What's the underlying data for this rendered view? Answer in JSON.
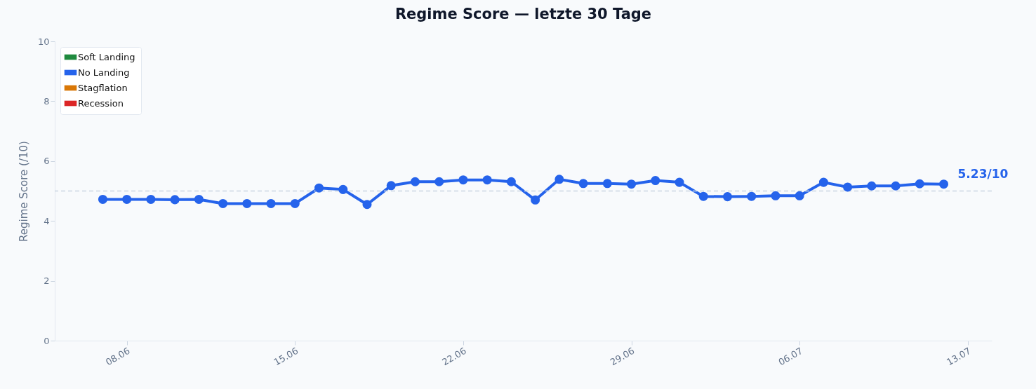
{
  "chart_data": {
    "type": "line",
    "title": "Regime Score — letzte 30 Tage",
    "ylabel": "Regime Score (/10)",
    "x": [
      "--06-07",
      "--06-08",
      "--06-09",
      "--06-10",
      "--06-11",
      "--06-12",
      "--06-13",
      "--06-14",
      "--06-15",
      "--06-16",
      "--06-17",
      "--06-18",
      "--06-19",
      "--06-20",
      "--06-21",
      "--06-22",
      "--06-23",
      "--06-24",
      "--06-25",
      "--06-26",
      "--06-27",
      "--06-28",
      "--06-29",
      "--06-30",
      "--07-01",
      "--07-02",
      "--07-03",
      "--07-04",
      "--07-05",
      "--07-06",
      "--07-07",
      "--07-08",
      "--07-09",
      "--07-10",
      "--07-11",
      "--07-12"
    ],
    "series": [
      {
        "name": "Soft Landing",
        "color": "#1f8a3e",
        "values": [
          null,
          null,
          null,
          null,
          null,
          null,
          null,
          null,
          null,
          null,
          null,
          null,
          null,
          null,
          null,
          null,
          null,
          null,
          null,
          null,
          null,
          null,
          null,
          null,
          null,
          null,
          null,
          null,
          null,
          null,
          null,
          null,
          null,
          null,
          null,
          null
        ]
      },
      {
        "name": "No Landing",
        "color": "#2563eb",
        "values": [
          4.72,
          4.72,
          4.72,
          4.71,
          4.72,
          4.58,
          4.58,
          4.58,
          4.58,
          5.1,
          5.05,
          4.55,
          5.18,
          5.31,
          5.31,
          5.37,
          5.37,
          5.31,
          4.7,
          5.39,
          5.25,
          5.25,
          5.23,
          5.35,
          5.29,
          4.82,
          4.81,
          4.82,
          4.84,
          4.84,
          5.29,
          5.13,
          5.17,
          5.17,
          5.24,
          5.23
        ]
      },
      {
        "name": "Stagflation",
        "color": "#d97706",
        "values": [
          null,
          null,
          null,
          null,
          null,
          null,
          null,
          null,
          null,
          null,
          null,
          null,
          null,
          null,
          null,
          null,
          null,
          null,
          null,
          null,
          null,
          null,
          null,
          null,
          null,
          null,
          null,
          null,
          null,
          null,
          null,
          null,
          null,
          null,
          null,
          null
        ]
      },
      {
        "name": "Recession",
        "color": "#dc2626",
        "values": [
          null,
          null,
          null,
          null,
          null,
          null,
          null,
          null,
          null,
          null,
          null,
          null,
          null,
          null,
          null,
          null,
          null,
          null,
          null,
          null,
          null,
          null,
          null,
          null,
          null,
          null,
          null,
          null,
          null,
          null,
          null,
          null,
          null,
          null,
          null,
          null
        ]
      }
    ],
    "xlim": [
      "--06-05",
      "--07-14"
    ],
    "xticks": [
      {
        "value": "--06-08",
        "label": "08.06"
      },
      {
        "value": "--06-15",
        "label": "15.06"
      },
      {
        "value": "--06-22",
        "label": "22.06"
      },
      {
        "value": "--06-29",
        "label": "29.06"
      },
      {
        "value": "--07-06",
        "label": "06.07"
      },
      {
        "value": "--07-13",
        "label": "13.07"
      }
    ],
    "ylim": [
      0,
      10
    ],
    "yticks": [
      0,
      2,
      4,
      6,
      8,
      10
    ],
    "ref_lines": [
      {
        "axis": "y",
        "value": 5,
        "color": "#cbd5e1",
        "line_style": "dashed"
      }
    ],
    "annotations": [
      {
        "text": "5.23/10",
        "x": "--07-12",
        "y": 5.23
      }
    ],
    "grid": false,
    "legend": "top left",
    "marker": "circle",
    "line_style": "solid"
  }
}
